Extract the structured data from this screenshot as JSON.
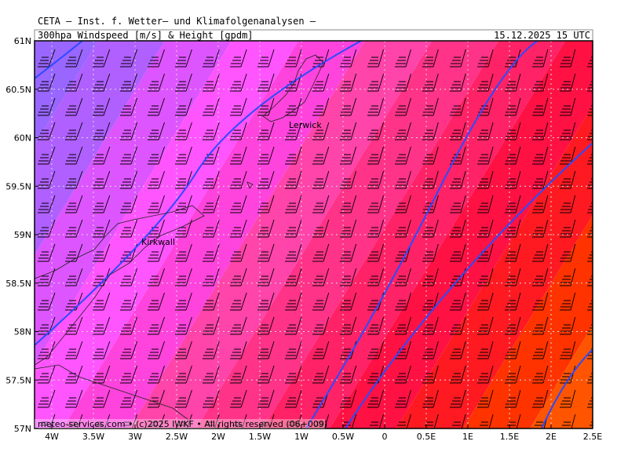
{
  "header": {
    "institute": "CETA – Inst. f. Wetter– und Klimafolgenanalysen –",
    "title": "300hpa Windspeed [m/s] & Height [gpdm]",
    "datetime": "15.12.2025 15 UTC"
  },
  "axes": {
    "lat_labels": [
      "61N",
      "60.5N",
      "60N",
      "59.5N",
      "59N",
      "58.5N",
      "58N",
      "57.5N",
      "57N"
    ],
    "lon_labels": [
      "4W",
      "3.5W",
      "3W",
      "2.5W",
      "2W",
      "1.5W",
      "1W",
      "0.5W",
      "0",
      "0.5E",
      "1E",
      "1.5E",
      "2E",
      "2.5E"
    ]
  },
  "places": [
    {
      "label": "Lerwick"
    },
    {
      "label": "Kirkwall"
    }
  ],
  "credit": "meteo-services.com • (c)2025 IWKF • All rights reserved (06+009)"
}
